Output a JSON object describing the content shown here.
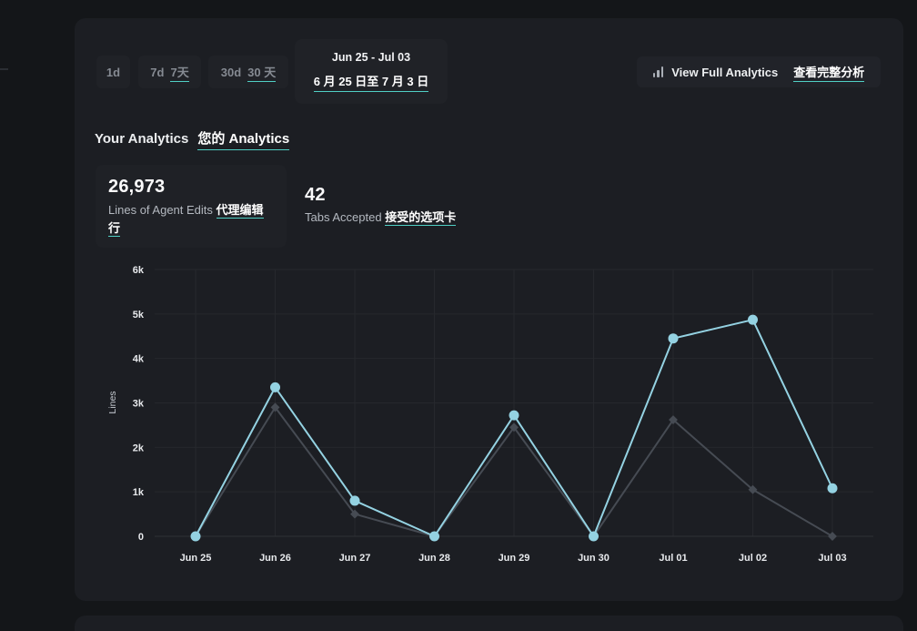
{
  "colors": {
    "outer_bg": "#141619",
    "panel_bg": "#1c1e23",
    "card_bg": "#1f2126",
    "accent_underline": "#50cfc4",
    "series_primary": "#94d2e2",
    "series_secondary": "#464b53",
    "grid": "#26282d",
    "axis_line": "#2e3136"
  },
  "toolbar": {
    "range_buttons": [
      {
        "label": "1d",
        "label_zh": ""
      },
      {
        "label": "7d",
        "label_zh": "7天"
      },
      {
        "label": "30d",
        "label_zh": "30 天"
      }
    ],
    "date_range": {
      "en": "Jun 25 - Jul 03",
      "zh": "6 月 25 日至 7 月 3 日"
    },
    "view_full_analytics": {
      "icon": "bar-chart-icon",
      "en": "View Full Analytics",
      "zh": "查看完整分析"
    }
  },
  "header": {
    "title_en": "Your Analytics",
    "title_zh": "您的 Analytics"
  },
  "stats": [
    {
      "value": "26,973",
      "label_en": "Lines of Agent Edits",
      "label_zh": "代理编辑行"
    },
    {
      "value": "42",
      "label_en": "Tabs Accepted",
      "label_zh": "接受的选项卡"
    }
  ],
  "chart_data": {
    "type": "line",
    "title": "",
    "xlabel": "",
    "ylabel": "Lines",
    "categories": [
      "Jun 25",
      "Jun 26",
      "Jun 27",
      "Jun 28",
      "Jun 29",
      "Jun 30",
      "Jul 01",
      "Jul 02",
      "Jul 03"
    ],
    "series": [
      {
        "name": "secondary-gray",
        "color": "#464b53",
        "marker": "diamond",
        "values": [
          0,
          2900,
          500,
          0,
          2450,
          0,
          2620,
          1050,
          0
        ]
      },
      {
        "name": "primary-blue",
        "color": "#94d2e2",
        "marker": "circle",
        "values": [
          0,
          3350,
          800,
          0,
          2720,
          0,
          4450,
          4870,
          1080
        ]
      }
    ],
    "ylim": [
      0,
      6000
    ],
    "yticks": [
      "0",
      "1k",
      "2k",
      "3k",
      "4k",
      "5k",
      "6k"
    ],
    "grid": true,
    "legend": "none"
  }
}
